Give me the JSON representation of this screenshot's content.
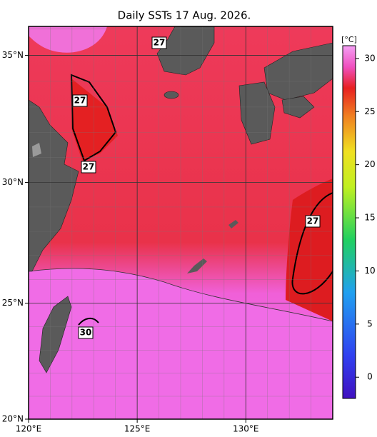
{
  "map": {
    "title": "Daily SSTs 17 Aug. 2026.",
    "xlim": [
      120,
      134
    ],
    "ylim": [
      20,
      36.1
    ],
    "xticks": [
      {
        "value": 120,
        "label": "120°E"
      },
      {
        "value": 125,
        "label": "125°E"
      },
      {
        "value": 130,
        "label": "130°E"
      }
    ],
    "yticks": [
      {
        "value": 20,
        "label": "20°N"
      },
      {
        "value": 25,
        "label": "25°N"
      },
      {
        "value": 30,
        "label": "30°N"
      },
      {
        "value": 35,
        "label": "35°N"
      }
    ],
    "contour_labels": [
      "27",
      "27",
      "27",
      "27",
      "30"
    ],
    "colorbar": {
      "unit": "[°C]",
      "lim": [
        -2,
        31.2
      ],
      "ticks": [
        0,
        5,
        10,
        15,
        20,
        25,
        30
      ]
    }
  }
}
